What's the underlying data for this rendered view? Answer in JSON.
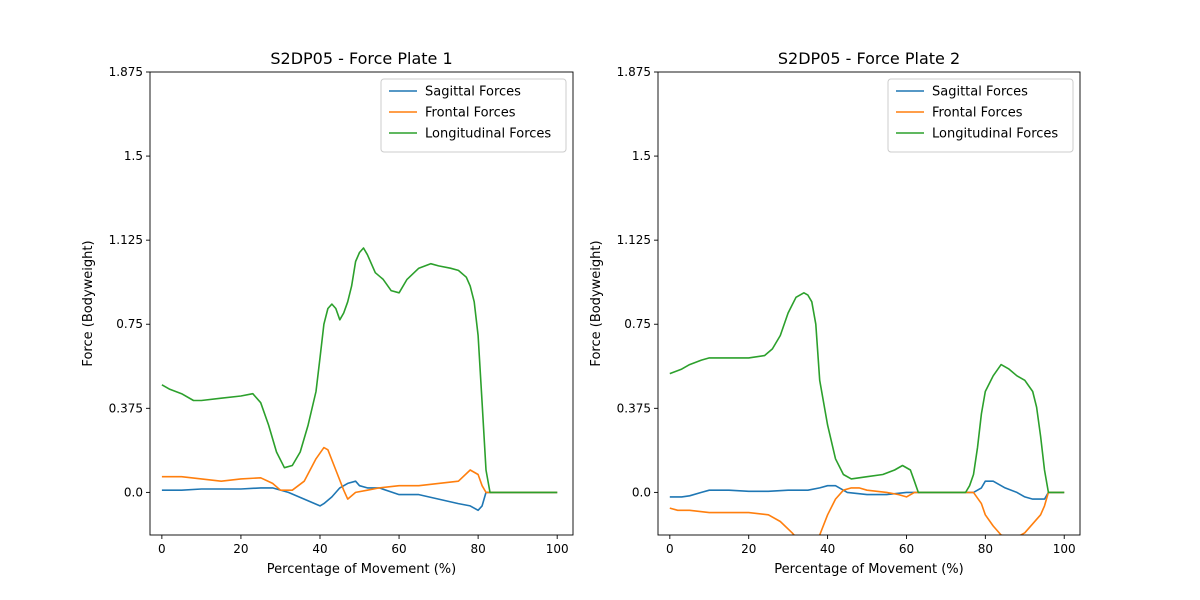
{
  "chart_data": [
    {
      "type": "line",
      "title": "S2DP05 - Force Plate 1",
      "xlabel": "Percentage of Movement (%)",
      "ylabel": "Force (Bodyweight)",
      "xlim": [
        -3,
        104
      ],
      "ylim": [
        -0.19,
        1.875
      ],
      "xticks": [
        "0",
        "20",
        "40",
        "60",
        "80",
        "100"
      ],
      "yticks": [
        "0.0",
        "0.375",
        "0.75",
        "1.125",
        "1.5",
        "1.875"
      ],
      "legend_position": "top-right",
      "grid": false,
      "series": [
        {
          "name": "Sagittal Forces",
          "color": "#1f77b4",
          "x": [
            0,
            5,
            10,
            15,
            20,
            25,
            28,
            32,
            36,
            40,
            41,
            43,
            45,
            47,
            49,
            50,
            52,
            55,
            60,
            65,
            70,
            75,
            78,
            80,
            81,
            82,
            85,
            90,
            95,
            100
          ],
          "y": [
            0.01,
            0.01,
            0.015,
            0.015,
            0.015,
            0.02,
            0.02,
            0.0,
            -0.03,
            -0.06,
            -0.05,
            -0.02,
            0.02,
            0.04,
            0.05,
            0.03,
            0.02,
            0.02,
            -0.01,
            -0.01,
            -0.03,
            -0.05,
            -0.06,
            -0.08,
            -0.06,
            0.0,
            0.0,
            0.0,
            0.0,
            0.0
          ]
        },
        {
          "name": "Frontal Forces",
          "color": "#ff7f0e",
          "x": [
            0,
            5,
            10,
            15,
            20,
            25,
            28,
            30,
            33,
            36,
            39,
            41,
            42,
            44,
            46,
            47,
            49,
            52,
            55,
            60,
            65,
            70,
            75,
            78,
            80,
            81,
            82,
            85,
            90,
            95,
            100
          ],
          "y": [
            0.07,
            0.07,
            0.06,
            0.05,
            0.06,
            0.065,
            0.04,
            0.01,
            0.01,
            0.05,
            0.15,
            0.2,
            0.19,
            0.1,
            0.01,
            -0.03,
            0.0,
            0.01,
            0.02,
            0.03,
            0.03,
            0.04,
            0.05,
            0.1,
            0.08,
            0.03,
            0.0,
            0.0,
            0.0,
            0.0,
            0.0
          ]
        },
        {
          "name": "Longitudinal Forces",
          "color": "#2ca02c",
          "x": [
            0,
            2,
            5,
            8,
            10,
            15,
            20,
            23,
            25,
            27,
            29,
            31,
            33,
            35,
            37,
            39,
            40,
            41,
            42,
            43,
            44,
            45,
            46,
            47,
            48,
            49,
            50,
            51,
            52,
            54,
            56,
            58,
            60,
            62,
            65,
            68,
            70,
            73,
            75,
            77,
            78,
            79,
            80,
            81,
            82,
            83,
            85,
            90,
            95,
            100
          ],
          "y": [
            0.48,
            0.46,
            0.44,
            0.41,
            0.41,
            0.42,
            0.43,
            0.44,
            0.4,
            0.3,
            0.18,
            0.11,
            0.12,
            0.18,
            0.3,
            0.45,
            0.6,
            0.75,
            0.82,
            0.84,
            0.82,
            0.77,
            0.8,
            0.85,
            0.92,
            1.03,
            1.07,
            1.09,
            1.06,
            0.98,
            0.95,
            0.9,
            0.89,
            0.95,
            1.0,
            1.02,
            1.01,
            1.0,
            0.99,
            0.96,
            0.92,
            0.85,
            0.7,
            0.4,
            0.1,
            0.0,
            0.0,
            0.0,
            0.0,
            0.0
          ]
        }
      ]
    },
    {
      "type": "line",
      "title": "S2DP05 - Force Plate 2",
      "xlabel": "Percentage of Movement (%)",
      "ylabel": "Force (Bodyweight)",
      "xlim": [
        -3,
        104
      ],
      "ylim": [
        -0.19,
        1.875
      ],
      "xticks": [
        "0",
        "20",
        "40",
        "60",
        "80",
        "100"
      ],
      "yticks": [
        "0.0",
        "0.375",
        "0.75",
        "1.125",
        "1.5",
        "1.875"
      ],
      "legend_position": "top-right",
      "grid": false,
      "series": [
        {
          "name": "Sagittal Forces",
          "color": "#1f77b4",
          "x": [
            0,
            3,
            5,
            8,
            10,
            15,
            20,
            25,
            30,
            35,
            38,
            40,
            42,
            45,
            50,
            55,
            60,
            62,
            65,
            70,
            75,
            77,
            79,
            80,
            82,
            85,
            88,
            90,
            92,
            95,
            96,
            100
          ],
          "y": [
            -0.02,
            -0.02,
            -0.015,
            0.0,
            0.01,
            0.01,
            0.005,
            0.005,
            0.01,
            0.01,
            0.02,
            0.03,
            0.03,
            0.0,
            -0.01,
            -0.01,
            0.0,
            0.0,
            0.0,
            0.0,
            0.0,
            0.0,
            0.02,
            0.05,
            0.05,
            0.02,
            0.0,
            -0.02,
            -0.03,
            -0.03,
            0.0,
            0.0
          ]
        },
        {
          "name": "Frontal Forces",
          "color": "#ff7f0e",
          "x": [
            0,
            2,
            5,
            10,
            15,
            20,
            25,
            28,
            31,
            34,
            36,
            38,
            40,
            42,
            44,
            46,
            48,
            50,
            55,
            58,
            60,
            62,
            65,
            70,
            75,
            77,
            79,
            80,
            82,
            84,
            86,
            88,
            90,
            92,
            94,
            95,
            96,
            100
          ],
          "y": [
            -0.07,
            -0.08,
            -0.08,
            -0.09,
            -0.09,
            -0.09,
            -0.1,
            -0.13,
            -0.18,
            -0.24,
            -0.26,
            -0.19,
            -0.1,
            -0.03,
            0.01,
            0.02,
            0.02,
            0.01,
            0.0,
            -0.01,
            -0.02,
            0.0,
            0.0,
            0.0,
            0.0,
            0.0,
            -0.05,
            -0.1,
            -0.15,
            -0.19,
            -0.2,
            -0.2,
            -0.18,
            -0.14,
            -0.1,
            -0.06,
            0.0,
            0.0
          ]
        },
        {
          "name": "Longitudinal Forces",
          "color": "#2ca02c",
          "x": [
            0,
            3,
            5,
            8,
            10,
            15,
            20,
            24,
            26,
            28,
            30,
            32,
            34,
            35,
            36,
            37,
            38,
            40,
            42,
            44,
            46,
            50,
            54,
            57,
            59,
            61,
            62,
            63,
            65,
            70,
            75,
            76,
            77,
            78,
            79,
            80,
            82,
            84,
            86,
            88,
            90,
            92,
            93,
            94,
            95,
            96,
            100
          ],
          "y": [
            0.53,
            0.55,
            0.57,
            0.59,
            0.6,
            0.6,
            0.6,
            0.61,
            0.64,
            0.7,
            0.8,
            0.87,
            0.89,
            0.88,
            0.85,
            0.75,
            0.5,
            0.3,
            0.15,
            0.08,
            0.06,
            0.07,
            0.08,
            0.1,
            0.12,
            0.1,
            0.05,
            0.0,
            0.0,
            0.0,
            0.0,
            0.03,
            0.08,
            0.2,
            0.35,
            0.45,
            0.52,
            0.57,
            0.55,
            0.52,
            0.5,
            0.45,
            0.38,
            0.25,
            0.1,
            0.0,
            0.0
          ]
        }
      ]
    }
  ]
}
